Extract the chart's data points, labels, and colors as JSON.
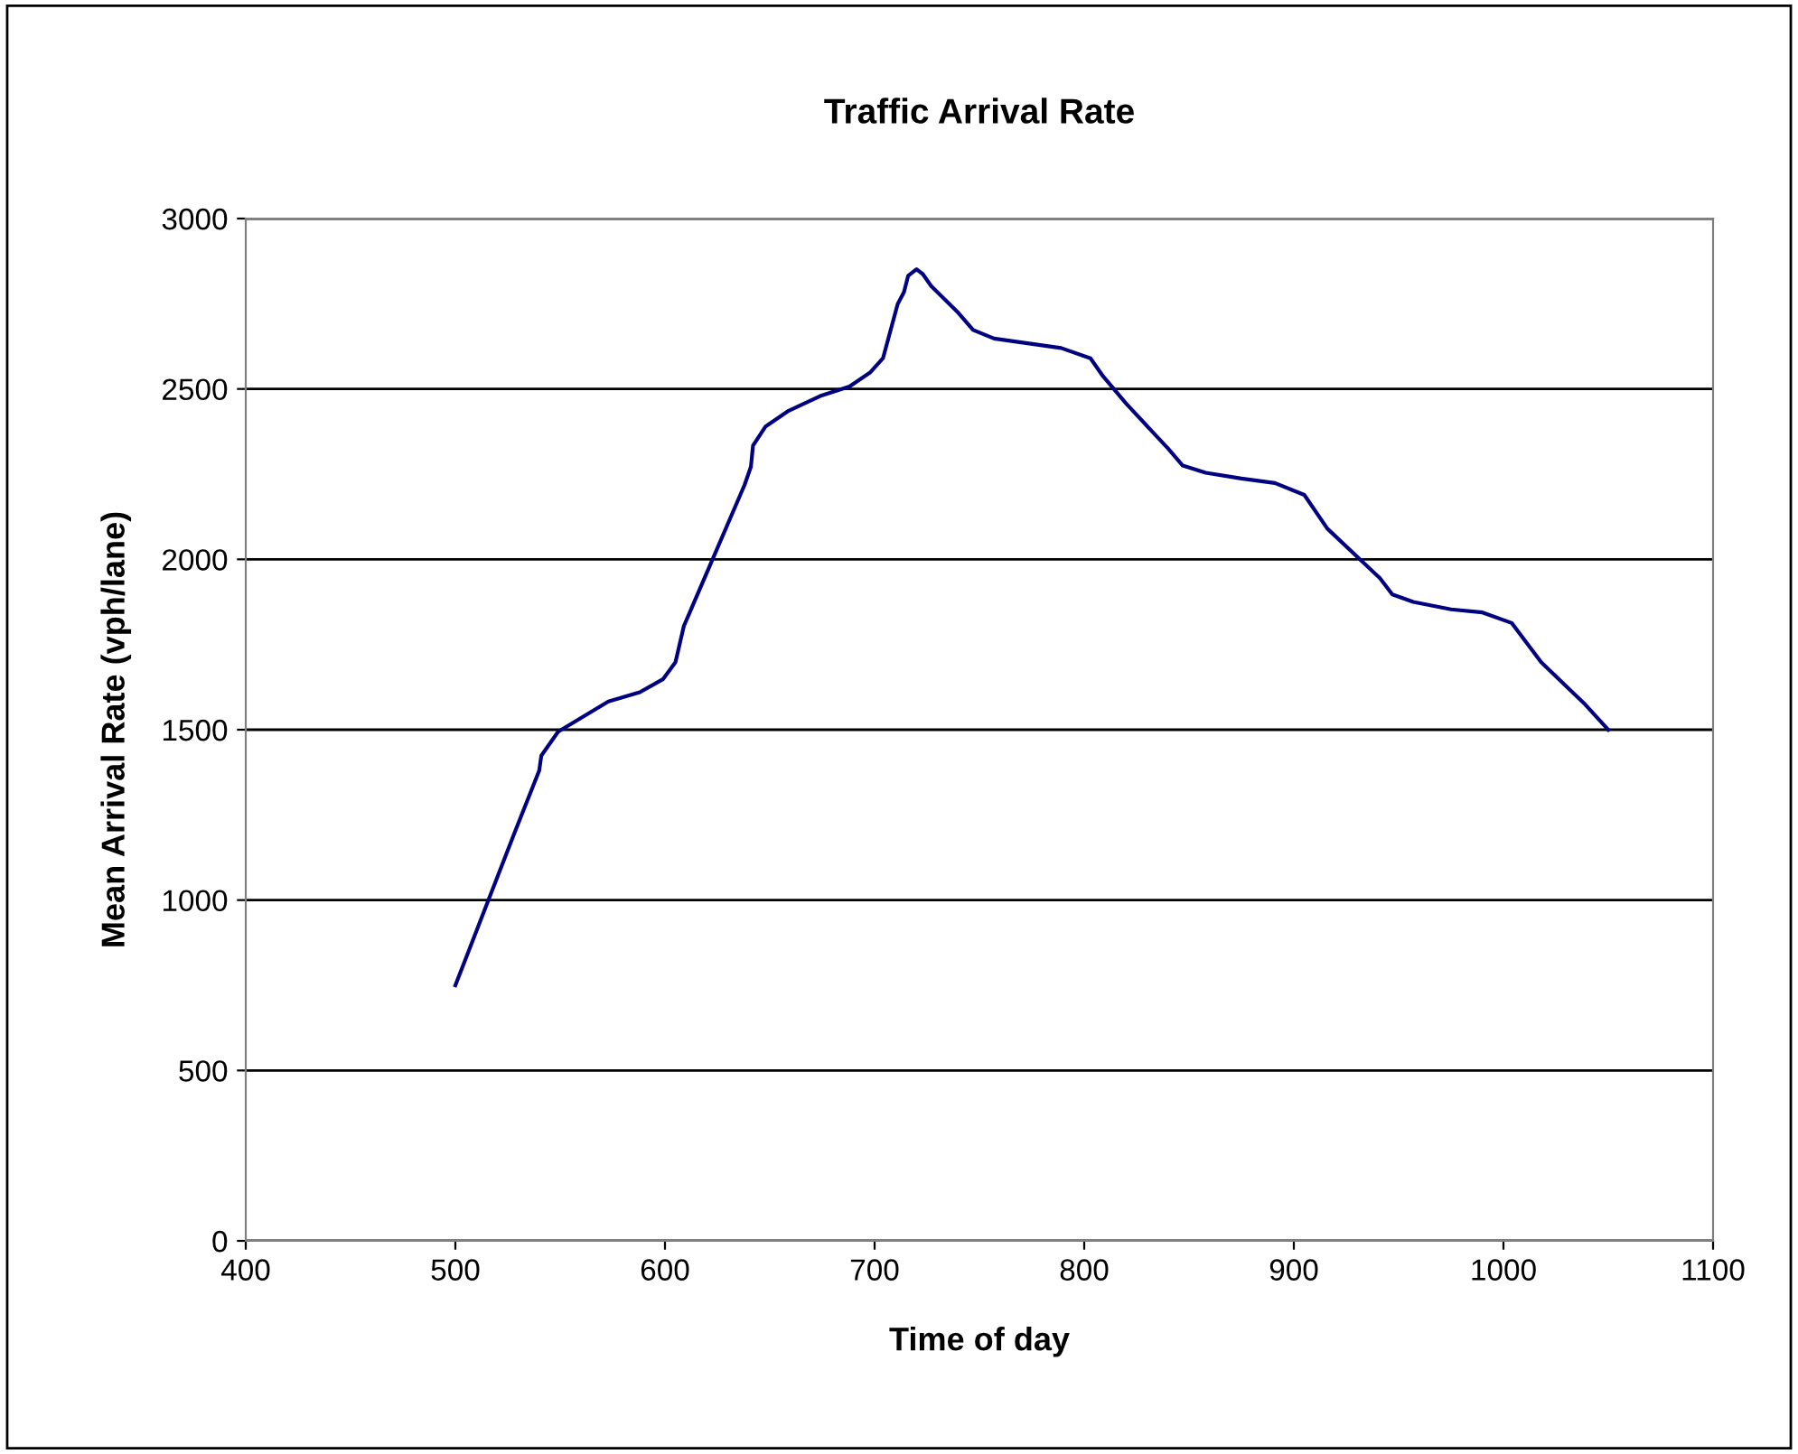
{
  "chart_data": {
    "type": "line",
    "title": "Traffic Arrival Rate",
    "xlabel": "Time of day",
    "ylabel": "Mean Arrival Rate (vph/lane)",
    "xlim": [
      400,
      1100
    ],
    "xticks": [
      400,
      500,
      600,
      700,
      800,
      900,
      1000,
      1100
    ],
    "ylim": [
      0,
      3000
    ],
    "yticks": [
      0,
      500,
      1000,
      1500,
      2000,
      2500,
      3000
    ],
    "grid": "y",
    "legend": false,
    "marker": "none",
    "line_style": "solid",
    "series": [
      {
        "color": "#000080",
        "x": [
          500,
          528,
          540,
          541,
          549,
          573,
          588,
          599,
          605,
          609,
          638,
          641,
          642,
          648,
          659,
          674,
          688,
          698,
          704,
          711,
          714,
          716,
          720,
          723,
          727,
          740,
          747,
          757,
          789,
          803,
          809,
          820,
          840,
          847,
          858,
          875,
          891,
          905,
          916,
          941,
          947,
          957,
          975,
          990,
          1004,
          1018,
          1039,
          1050
        ],
        "values": [
          750,
          1194,
          1380,
          1424,
          1494,
          1583,
          1610,
          1648,
          1698,
          1804,
          2219,
          2272,
          2334,
          2390,
          2436,
          2479,
          2507,
          2549,
          2590,
          2749,
          2784,
          2832,
          2851,
          2837,
          2802,
          2723,
          2673,
          2648,
          2620,
          2590,
          2537,
          2457,
          2325,
          2275,
          2254,
          2237,
          2224,
          2189,
          2090,
          1945,
          1897,
          1875,
          1853,
          1844,
          1813,
          1698,
          1574,
          1500
        ]
      }
    ]
  }
}
